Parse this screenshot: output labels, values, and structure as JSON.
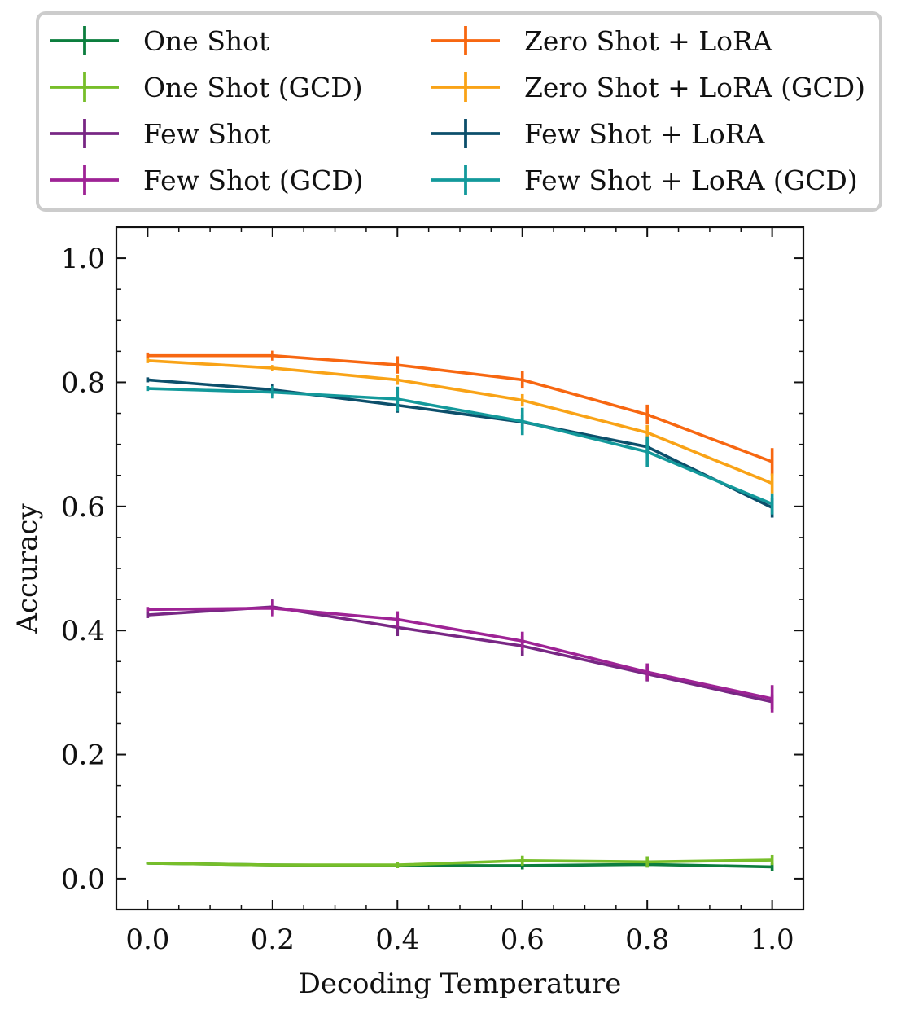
{
  "chart_data": {
    "type": "line",
    "xlabel": "Decoding Temperature",
    "ylabel": "Accuracy",
    "xlim": [
      -0.05,
      1.05
    ],
    "ylim": [
      -0.05,
      1.05
    ],
    "xticks": [
      0.0,
      0.2,
      0.4,
      0.6,
      0.8,
      1.0
    ],
    "xtick_labels": [
      "0.0",
      "0.2",
      "0.4",
      "0.6",
      "0.8",
      "1.0"
    ],
    "yticks": [
      0.0,
      0.2,
      0.4,
      0.6,
      0.8,
      1.0
    ],
    "ytick_labels": [
      "0.0",
      "0.2",
      "0.4",
      "0.6",
      "0.8",
      "1.0"
    ],
    "legend_position": "top (above plot), 2 columns",
    "x": [
      0.0,
      0.2,
      0.4,
      0.6,
      0.8,
      1.0
    ],
    "series": [
      {
        "name": "One Shot",
        "color": "#0c7e3e",
        "values": [
          0.025,
          0.022,
          0.021,
          0.021,
          0.023,
          0.019
        ],
        "errors": [
          0.002,
          0.002,
          0.004,
          0.006,
          0.005,
          0.006
        ]
      },
      {
        "name": "One Shot (GCD)",
        "color": "#77be2a",
        "values": [
          0.025,
          0.022,
          0.022,
          0.029,
          0.027,
          0.03
        ],
        "errors": [
          0.002,
          0.002,
          0.005,
          0.008,
          0.009,
          0.008
        ]
      },
      {
        "name": "Few Shot",
        "color": "#782784",
        "values": [
          0.425,
          0.438,
          0.405,
          0.375,
          0.33,
          0.285
        ],
        "errors": [
          0.005,
          0.012,
          0.014,
          0.016,
          0.012,
          0.012
        ]
      },
      {
        "name": "Few Shot (GCD)",
        "color": "#9e2395",
        "values": [
          0.434,
          0.436,
          0.418,
          0.383,
          0.333,
          0.29
        ],
        "errors": [
          0.004,
          0.013,
          0.013,
          0.015,
          0.014,
          0.022
        ]
      },
      {
        "name": "Zero Shot + LoRA",
        "color": "#f76711",
        "values": [
          0.843,
          0.843,
          0.828,
          0.804,
          0.748,
          0.672
        ],
        "errors": [
          0.005,
          0.008,
          0.014,
          0.014,
          0.016,
          0.022
        ]
      },
      {
        "name": "Zero Shot + LoRA (GCD)",
        "color": "#f9a317",
        "values": [
          0.835,
          0.823,
          0.804,
          0.771,
          0.719,
          0.637
        ],
        "errors": [
          0.004,
          0.005,
          0.008,
          0.01,
          0.012,
          0.016
        ]
      },
      {
        "name": "Few Shot + LoRA",
        "color": "#0c4f6b",
        "values": [
          0.804,
          0.788,
          0.763,
          0.736,
          0.696,
          0.598
        ],
        "errors": [
          0.004,
          0.01,
          0.012,
          0.012,
          0.012,
          0.016
        ]
      },
      {
        "name": "Few Shot + LoRA (GCD)",
        "color": "#13999b",
        "values": [
          0.79,
          0.784,
          0.773,
          0.737,
          0.688,
          0.604
        ],
        "errors": [
          0.004,
          0.01,
          0.02,
          0.022,
          0.025,
          0.017
        ]
      }
    ]
  }
}
